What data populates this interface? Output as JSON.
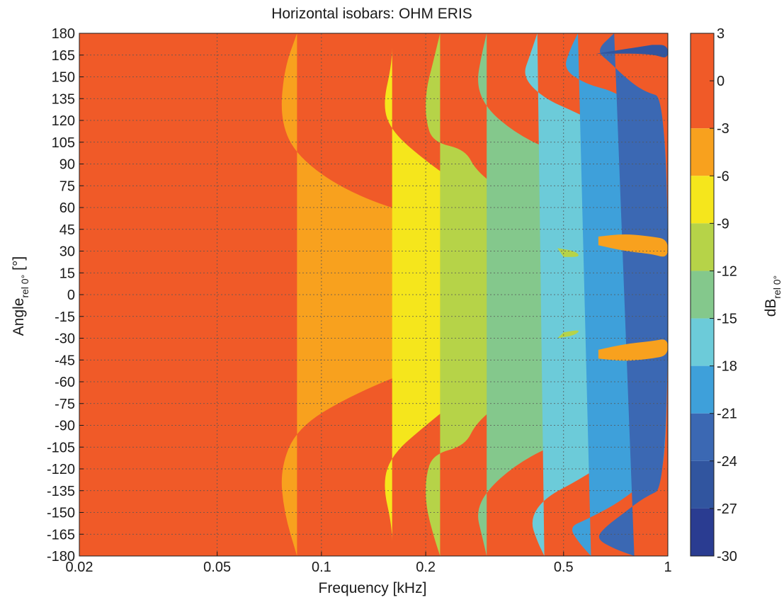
{
  "chart_data": {
    "type": "heatmap",
    "title": "Horizontal isobars: OHM  ERIS",
    "xlabel": "Frequency [kHz]",
    "ylabel_main": "Angle",
    "ylabel_sub": "rel 0°",
    "ylabel_unit": " [°]",
    "colorbar_label_main": "dB",
    "colorbar_label_sub": "rel 0°",
    "x_scale": "log",
    "xlim": [
      0.02,
      1
    ],
    "ylim": [
      -180,
      180
    ],
    "x_ticks": [
      0.02,
      0.05,
      0.1,
      0.2,
      0.5,
      1
    ],
    "x_tick_labels": [
      "0.02",
      "0.05",
      "0.1",
      "0.2",
      "0.5",
      "1"
    ],
    "y_ticks": [
      180,
      165,
      150,
      135,
      120,
      105,
      90,
      75,
      60,
      45,
      30,
      15,
      0,
      -15,
      -30,
      -45,
      -60,
      -75,
      -90,
      -105,
      -120,
      -135,
      -150,
      -165,
      -180
    ],
    "y_tick_labels": [
      "180",
      "165",
      "150",
      "135",
      "120",
      "105",
      "90",
      "75",
      "60",
      "45",
      "30",
      "15",
      "0",
      "-15",
      "-30",
      "-45",
      "-60",
      "-75",
      "-90",
      "-105",
      "-120",
      "-135",
      "-150",
      "-165",
      "-180"
    ],
    "grid": true,
    "colorbar": {
      "levels": [
        3,
        0,
        -3,
        -6,
        -9,
        -12,
        -15,
        -18,
        -21,
        -24,
        -27,
        -30
      ],
      "tick_labels": [
        "3",
        "0",
        "-3",
        "-6",
        "-9",
        "-12",
        "-15",
        "-18",
        "-21",
        "-24",
        "-27",
        "-30"
      ],
      "bands": [
        {
          "from": 3,
          "to": -3,
          "color": "#f05a28"
        },
        {
          "from": -3,
          "to": -6,
          "color": "#f8a11e"
        },
        {
          "from": -6,
          "to": -9,
          "color": "#f5e61c"
        },
        {
          "from": -9,
          "to": -12,
          "color": "#b6d348"
        },
        {
          "from": -12,
          "to": -15,
          "color": "#84c88c"
        },
        {
          "from": -15,
          "to": -18,
          "color": "#6ccbd9"
        },
        {
          "from": -18,
          "to": -21,
          "color": "#3ea0da"
        },
        {
          "from": -21,
          "to": -24,
          "color": "#3b68b3"
        },
        {
          "from": -24,
          "to": -27,
          "color": "#31559f"
        },
        {
          "from": -27,
          "to": -30,
          "color": "#2a3c91"
        }
      ]
    },
    "contours_dB": [
      {
        "level": -3,
        "color": "#f8a11e",
        "points": [
          [
            0.085,
            180
          ],
          [
            0.078,
            155
          ],
          [
            0.076,
            120
          ],
          [
            0.085,
            95
          ],
          [
            0.12,
            70
          ],
          [
            0.2,
            52
          ],
          [
            0.35,
            38
          ],
          [
            0.55,
            28
          ],
          [
            0.8,
            18
          ],
          [
            1,
            10
          ],
          [
            1,
            -10
          ],
          [
            0.8,
            -16
          ],
          [
            0.55,
            -24
          ],
          [
            0.35,
            -34
          ],
          [
            0.2,
            -48
          ],
          [
            0.12,
            -70
          ],
          [
            0.085,
            -92
          ],
          [
            0.076,
            -120
          ],
          [
            0.078,
            -150
          ],
          [
            0.085,
            -180
          ]
        ]
      },
      {
        "level": -6,
        "color": "#f5e61c",
        "points": [
          [
            0.16,
            180
          ],
          [
            0.16,
            160
          ],
          [
            0.15,
            130
          ],
          [
            0.16,
            112
          ],
          [
            0.2,
            92
          ],
          [
            0.27,
            70
          ],
          [
            0.4,
            55
          ],
          [
            0.6,
            42
          ],
          [
            0.85,
            35
          ],
          [
            1,
            33
          ],
          [
            1,
            -30
          ],
          [
            0.85,
            -28
          ],
          [
            0.6,
            -36
          ],
          [
            0.4,
            -50
          ],
          [
            0.27,
            -65
          ],
          [
            0.2,
            -90
          ],
          [
            0.16,
            -110
          ],
          [
            0.15,
            -130
          ],
          [
            0.16,
            -160
          ],
          [
            0.16,
            -180
          ]
        ]
      },
      {
        "level": -9,
        "color": "#b6d348",
        "points": [
          [
            0.22,
            180
          ],
          [
            0.21,
            160
          ],
          [
            0.2,
            140
          ],
          [
            0.2,
            120
          ],
          [
            0.21,
            105
          ],
          [
            0.26,
            100
          ],
          [
            0.28,
            85
          ],
          [
            0.34,
            70
          ],
          [
            0.5,
            62
          ],
          [
            0.7,
            60
          ],
          [
            1,
            60
          ],
          [
            1,
            -60
          ],
          [
            0.7,
            -64
          ],
          [
            0.5,
            -66
          ],
          [
            0.34,
            -72
          ],
          [
            0.28,
            -88
          ],
          [
            0.26,
            -104
          ],
          [
            0.21,
            -110
          ],
          [
            0.2,
            -125
          ],
          [
            0.2,
            -145
          ],
          [
            0.21,
            -165
          ],
          [
            0.22,
            -180
          ]
        ]
      },
      {
        "level": -12,
        "color": "#84c88c",
        "points": [
          [
            0.3,
            180
          ],
          [
            0.29,
            165
          ],
          [
            0.28,
            145
          ],
          [
            0.3,
            128
          ],
          [
            0.36,
            112
          ],
          [
            0.45,
            100
          ],
          [
            0.6,
            92
          ],
          [
            0.8,
            80
          ],
          [
            1,
            72
          ],
          [
            1,
            -72
          ],
          [
            0.8,
            -82
          ],
          [
            0.6,
            -95
          ],
          [
            0.45,
            -105
          ],
          [
            0.36,
            -118
          ],
          [
            0.3,
            -135
          ],
          [
            0.28,
            -150
          ],
          [
            0.29,
            -165
          ],
          [
            0.3,
            -180
          ]
        ]
      },
      {
        "level": -15,
        "color": "#6ccbd9",
        "points": [
          [
            0.42,
            180
          ],
          [
            0.4,
            165
          ],
          [
            0.38,
            150
          ],
          [
            0.44,
            135
          ],
          [
            0.55,
            125
          ],
          [
            0.7,
            112
          ],
          [
            0.85,
            100
          ],
          [
            1,
            95
          ],
          [
            1,
            -95
          ],
          [
            0.85,
            -102
          ],
          [
            0.7,
            -112
          ],
          [
            0.55,
            -128
          ],
          [
            0.44,
            -140
          ],
          [
            0.4,
            -155
          ],
          [
            0.42,
            -170
          ],
          [
            0.44,
            -180
          ]
        ]
      },
      {
        "level": -18,
        "color": "#3ea0da",
        "points": [
          [
            0.55,
            180
          ],
          [
            0.52,
            168
          ],
          [
            0.5,
            155
          ],
          [
            0.58,
            145
          ],
          [
            0.7,
            140
          ],
          [
            0.8,
            130
          ],
          [
            0.9,
            122
          ],
          [
            1,
            120
          ],
          [
            1,
            -120
          ],
          [
            0.9,
            -125
          ],
          [
            0.8,
            -135
          ],
          [
            0.7,
            -145
          ],
          [
            0.58,
            -155
          ],
          [
            0.52,
            -160
          ],
          [
            0.55,
            -170
          ],
          [
            0.6,
            -180
          ]
        ]
      },
      {
        "level": -21,
        "color": "#3b68b3",
        "points": [
          [
            0.7,
            180
          ],
          [
            0.62,
            168
          ],
          [
            0.68,
            160
          ],
          [
            0.75,
            150
          ],
          [
            0.85,
            140
          ],
          [
            1,
            135
          ],
          [
            1,
            -132
          ],
          [
            0.85,
            -140
          ],
          [
            0.75,
            -150
          ],
          [
            0.66,
            -160
          ],
          [
            0.62,
            -168
          ],
          [
            0.7,
            -175
          ],
          [
            0.8,
            -180
          ]
        ]
      },
      {
        "level": -24,
        "color": "#31559f",
        "points": [
          [
            0.62,
            166
          ],
          [
            0.9,
            166
          ],
          [
            1,
            162
          ],
          [
            1,
            172
          ],
          [
            0.9,
            172
          ]
        ]
      },
      {
        "level": -6,
        "color": "#f8a11e",
        "points": [
          [
            0.63,
            40
          ],
          [
            0.75,
            42
          ],
          [
            0.9,
            40
          ],
          [
            1,
            38
          ],
          [
            1,
            25
          ],
          [
            0.9,
            28
          ],
          [
            0.75,
            30
          ],
          [
            0.63,
            34
          ]
        ]
      },
      {
        "level": -6,
        "color": "#f8a11e",
        "points": [
          [
            0.63,
            -38
          ],
          [
            0.75,
            -34
          ],
          [
            0.9,
            -32
          ],
          [
            1,
            -30
          ],
          [
            1,
            -42
          ],
          [
            0.9,
            -44
          ],
          [
            0.75,
            -46
          ],
          [
            0.63,
            -44
          ]
        ]
      },
      {
        "level": -9,
        "color": "#b6d348",
        "points": [
          [
            0.48,
            32
          ],
          [
            0.54,
            30
          ],
          [
            0.56,
            26
          ],
          [
            0.5,
            26
          ]
        ]
      },
      {
        "level": -9,
        "color": "#b6d348",
        "points": [
          [
            0.48,
            -30
          ],
          [
            0.54,
            -28
          ],
          [
            0.56,
            -24
          ],
          [
            0.5,
            -26
          ]
        ]
      }
    ]
  }
}
